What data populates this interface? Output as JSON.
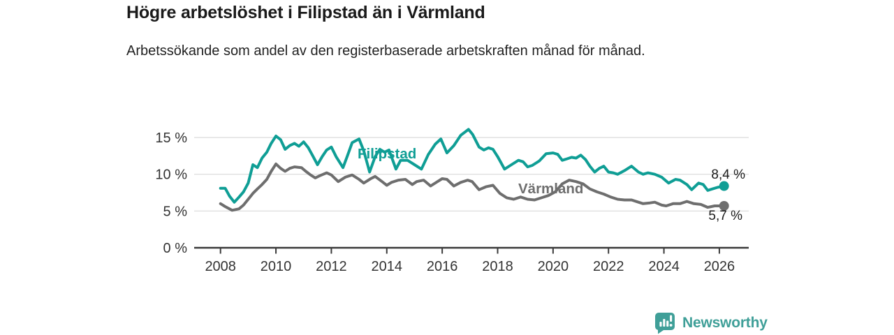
{
  "header": {
    "title": "Högre arbetslöshet i Filipstad än i Värmland",
    "subtitle": "Arbetssökande som andel av den registerbaserade arbetskraften månad för månad."
  },
  "chart_data": {
    "type": "line",
    "title": "Högre arbetslöshet i Filipstad än i Värmland",
    "subtitle": "Arbetssökande som andel av den registerbaserade arbetskraften månad för månad.",
    "grid": "horizontal",
    "colors": {
      "filipstad": "#0f9e95",
      "varmland": "#6e6e6e",
      "gridline": "#d9d9d9",
      "axis": "#3a3a3a",
      "text": "#333333"
    },
    "x_axis": {
      "tick_labels": [
        "2008",
        "2010",
        "2012",
        "2014",
        "2016",
        "2018",
        "2020",
        "2022",
        "2024",
        "2026"
      ],
      "range": [
        2007.05,
        2027.06
      ]
    },
    "y_axis": {
      "ticks": [
        {
          "value": 0,
          "label": "0 %"
        },
        {
          "value": 5,
          "label": "5 %"
        },
        {
          "value": 10,
          "label": "10 %"
        },
        {
          "value": 15,
          "label": "15 %"
        }
      ],
      "range": [
        0,
        17
      ]
    },
    "series": [
      {
        "name": "Filipstad",
        "color": "#0f9e95",
        "end_label": "8,4 %",
        "end_value": 8.4,
        "points": [
          [
            2008.0,
            8.1
          ],
          [
            2008.17,
            8.1
          ],
          [
            2008.33,
            7.0
          ],
          [
            2008.5,
            6.2
          ],
          [
            2008.67,
            6.9
          ],
          [
            2008.83,
            7.6
          ],
          [
            2009.0,
            8.8
          ],
          [
            2009.17,
            11.3
          ],
          [
            2009.33,
            10.9
          ],
          [
            2009.5,
            12.2
          ],
          [
            2009.67,
            13.0
          ],
          [
            2009.83,
            14.2
          ],
          [
            2010.0,
            15.2
          ],
          [
            2010.17,
            14.7
          ],
          [
            2010.33,
            13.4
          ],
          [
            2010.5,
            13.9
          ],
          [
            2010.67,
            14.2
          ],
          [
            2010.83,
            13.8
          ],
          [
            2011.0,
            14.4
          ],
          [
            2011.17,
            13.6
          ],
          [
            2011.33,
            12.5
          ],
          [
            2011.5,
            11.3
          ],
          [
            2011.67,
            12.4
          ],
          [
            2011.83,
            13.3
          ],
          [
            2012.0,
            13.7
          ],
          [
            2012.17,
            12.4
          ],
          [
            2012.42,
            10.9
          ],
          [
            2012.58,
            12.5
          ],
          [
            2012.75,
            14.3
          ],
          [
            2013.0,
            14.8
          ],
          [
            2013.17,
            13.2
          ],
          [
            2013.38,
            10.3
          ],
          [
            2013.58,
            12.4
          ],
          [
            2013.75,
            13.4
          ],
          [
            2013.92,
            13.0
          ],
          [
            2014.08,
            13.3
          ],
          [
            2014.33,
            10.7
          ],
          [
            2014.5,
            11.9
          ],
          [
            2014.75,
            11.9
          ],
          [
            2015.0,
            11.3
          ],
          [
            2015.25,
            10.7
          ],
          [
            2015.5,
            12.7
          ],
          [
            2015.75,
            14.1
          ],
          [
            2015.95,
            14.8
          ],
          [
            2016.17,
            12.9
          ],
          [
            2016.42,
            13.9
          ],
          [
            2016.67,
            15.3
          ],
          [
            2016.95,
            16.1
          ],
          [
            2017.1,
            15.4
          ],
          [
            2017.33,
            13.7
          ],
          [
            2017.5,
            13.3
          ],
          [
            2017.67,
            13.6
          ],
          [
            2017.83,
            13.4
          ],
          [
            2018.0,
            12.4
          ],
          [
            2018.25,
            10.7
          ],
          [
            2018.5,
            11.3
          ],
          [
            2018.75,
            11.9
          ],
          [
            2018.92,
            11.7
          ],
          [
            2019.08,
            11.0
          ],
          [
            2019.25,
            11.2
          ],
          [
            2019.5,
            11.8
          ],
          [
            2019.75,
            12.8
          ],
          [
            2020.0,
            12.9
          ],
          [
            2020.17,
            12.7
          ],
          [
            2020.33,
            11.9
          ],
          [
            2020.5,
            12.1
          ],
          [
            2020.67,
            12.3
          ],
          [
            2020.83,
            12.2
          ],
          [
            2021.0,
            12.6
          ],
          [
            2021.17,
            12.0
          ],
          [
            2021.33,
            11.1
          ],
          [
            2021.5,
            10.3
          ],
          [
            2021.67,
            10.8
          ],
          [
            2021.83,
            11.1
          ],
          [
            2022.0,
            10.3
          ],
          [
            2022.17,
            10.2
          ],
          [
            2022.33,
            10.0
          ],
          [
            2022.58,
            10.5
          ],
          [
            2022.83,
            11.1
          ],
          [
            2023.08,
            10.3
          ],
          [
            2023.25,
            10.0
          ],
          [
            2023.42,
            10.2
          ],
          [
            2023.67,
            10.0
          ],
          [
            2023.92,
            9.6
          ],
          [
            2024.17,
            8.8
          ],
          [
            2024.42,
            9.3
          ],
          [
            2024.58,
            9.2
          ],
          [
            2024.83,
            8.6
          ],
          [
            2025.0,
            7.9
          ],
          [
            2025.25,
            8.8
          ],
          [
            2025.42,
            8.6
          ],
          [
            2025.58,
            7.8
          ],
          [
            2025.75,
            8.0
          ],
          [
            2025.92,
            8.2
          ],
          [
            2026.17,
            8.4
          ]
        ]
      },
      {
        "name": "Värmland",
        "color": "#6e6e6e",
        "end_label": "5,7 %",
        "end_value": 5.7,
        "points": [
          [
            2008.0,
            6.0
          ],
          [
            2008.17,
            5.6
          ],
          [
            2008.42,
            5.1
          ],
          [
            2008.67,
            5.3
          ],
          [
            2008.83,
            5.8
          ],
          [
            2009.0,
            6.6
          ],
          [
            2009.17,
            7.4
          ],
          [
            2009.33,
            8.0
          ],
          [
            2009.5,
            8.6
          ],
          [
            2009.67,
            9.3
          ],
          [
            2009.83,
            10.4
          ],
          [
            2010.0,
            11.4
          ],
          [
            2010.17,
            10.8
          ],
          [
            2010.33,
            10.4
          ],
          [
            2010.5,
            10.8
          ],
          [
            2010.67,
            11.0
          ],
          [
            2010.92,
            10.9
          ],
          [
            2011.08,
            10.4
          ],
          [
            2011.25,
            9.9
          ],
          [
            2011.42,
            9.5
          ],
          [
            2011.58,
            9.8
          ],
          [
            2011.83,
            10.2
          ],
          [
            2012.0,
            9.9
          ],
          [
            2012.25,
            9.0
          ],
          [
            2012.5,
            9.6
          ],
          [
            2012.75,
            9.9
          ],
          [
            2013.0,
            9.3
          ],
          [
            2013.17,
            8.8
          ],
          [
            2013.42,
            9.4
          ],
          [
            2013.58,
            9.7
          ],
          [
            2013.83,
            9.0
          ],
          [
            2014.0,
            8.5
          ],
          [
            2014.17,
            8.9
          ],
          [
            2014.42,
            9.2
          ],
          [
            2014.67,
            9.3
          ],
          [
            2014.92,
            8.6
          ],
          [
            2015.08,
            9.0
          ],
          [
            2015.33,
            9.2
          ],
          [
            2015.58,
            8.4
          ],
          [
            2015.83,
            9.0
          ],
          [
            2016.0,
            9.4
          ],
          [
            2016.17,
            9.3
          ],
          [
            2016.42,
            8.4
          ],
          [
            2016.67,
            8.9
          ],
          [
            2016.92,
            9.2
          ],
          [
            2017.08,
            9.0
          ],
          [
            2017.33,
            7.9
          ],
          [
            2017.58,
            8.3
          ],
          [
            2017.83,
            8.5
          ],
          [
            2018.08,
            7.4
          ],
          [
            2018.33,
            6.8
          ],
          [
            2018.58,
            6.6
          ],
          [
            2018.83,
            6.9
          ],
          [
            2019.08,
            6.6
          ],
          [
            2019.33,
            6.5
          ],
          [
            2019.58,
            6.8
          ],
          [
            2019.83,
            7.1
          ],
          [
            2020.08,
            7.6
          ],
          [
            2020.33,
            8.7
          ],
          [
            2020.58,
            9.2
          ],
          [
            2020.83,
            9.0
          ],
          [
            2021.08,
            8.7
          ],
          [
            2021.33,
            8.0
          ],
          [
            2021.58,
            7.6
          ],
          [
            2021.83,
            7.3
          ],
          [
            2022.08,
            6.9
          ],
          [
            2022.33,
            6.6
          ],
          [
            2022.58,
            6.5
          ],
          [
            2022.83,
            6.5
          ],
          [
            2023.08,
            6.2
          ],
          [
            2023.25,
            6.0
          ],
          [
            2023.5,
            6.1
          ],
          [
            2023.67,
            6.2
          ],
          [
            2023.92,
            5.8
          ],
          [
            2024.08,
            5.7
          ],
          [
            2024.33,
            6.0
          ],
          [
            2024.58,
            6.0
          ],
          [
            2024.83,
            6.3
          ],
          [
            2025.08,
            6.0
          ],
          [
            2025.33,
            5.9
          ],
          [
            2025.58,
            5.5
          ],
          [
            2025.83,
            5.7
          ],
          [
            2026.17,
            5.7
          ]
        ]
      }
    ]
  },
  "footer": {
    "brand": "Newsworthy"
  }
}
